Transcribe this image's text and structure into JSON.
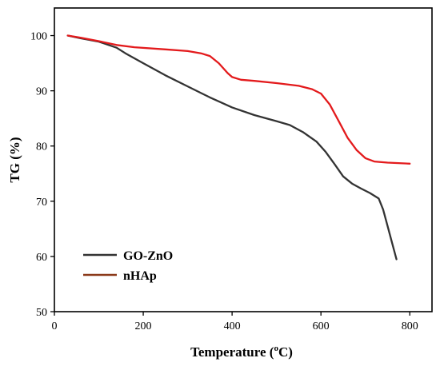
{
  "chart_data": {
    "type": "line",
    "xlabel": "Temperature (",
    "xlabel_sup": "o",
    "xlabel_unit": "C)",
    "ylabel": "TG (%)",
    "xlim": [
      0,
      850
    ],
    "ylim": [
      50,
      105
    ],
    "xticks": [
      "0",
      "200",
      "400",
      "600",
      "800"
    ],
    "yticks": [
      "50",
      "60",
      "70",
      "80",
      "90",
      "100"
    ],
    "xtick_values": [
      0,
      200,
      400,
      600,
      800
    ],
    "ytick_values": [
      50,
      60,
      70,
      80,
      90,
      100
    ],
    "legend_position": "bottom-left",
    "series": [
      {
        "name": "GO-ZnO",
        "color": "#333333",
        "x": [
          30,
          60,
          100,
          140,
          160,
          200,
          250,
          300,
          350,
          400,
          450,
          500,
          530,
          560,
          590,
          610,
          630,
          650,
          670,
          690,
          710,
          730,
          740,
          750,
          760,
          770
        ],
        "y": [
          100,
          99.5,
          98.9,
          97.8,
          96.8,
          95.0,
          92.8,
          90.8,
          88.8,
          87.0,
          85.6,
          84.5,
          83.8,
          82.5,
          80.8,
          79.0,
          76.8,
          74.5,
          73.2,
          72.3,
          71.5,
          70.5,
          68.5,
          65.5,
          62.5,
          59.5
        ]
      },
      {
        "name": "nHAp",
        "color": "#e31a1c",
        "legend_color": "#8b3a1a",
        "x": [
          30,
          60,
          100,
          140,
          180,
          250,
          300,
          330,
          350,
          370,
          390,
          400,
          420,
          450,
          500,
          550,
          580,
          600,
          620,
          640,
          660,
          680,
          700,
          720,
          750,
          800
        ],
        "y": [
          100,
          99.6,
          99.0,
          98.3,
          97.9,
          97.5,
          97.2,
          96.8,
          96.3,
          95.0,
          93.2,
          92.5,
          92.0,
          91.8,
          91.4,
          90.9,
          90.3,
          89.5,
          87.5,
          84.5,
          81.5,
          79.3,
          77.8,
          77.2,
          77.0,
          76.8
        ]
      }
    ]
  }
}
